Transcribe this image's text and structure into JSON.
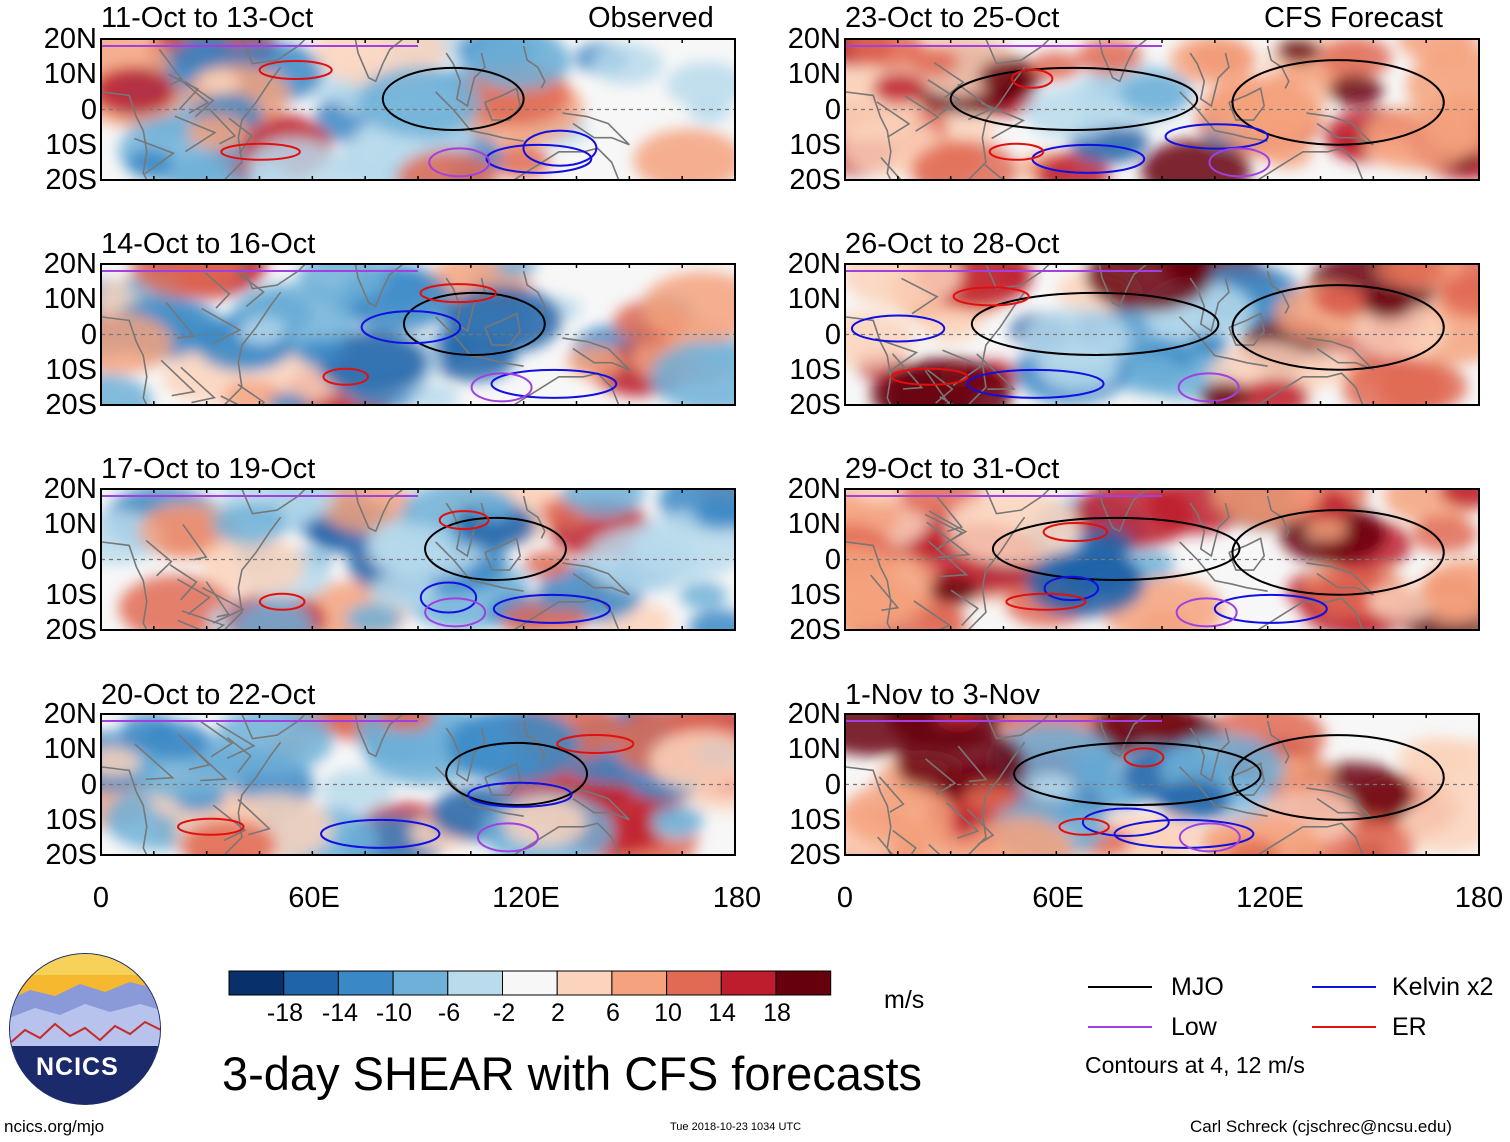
{
  "chart_data": {
    "type": "heatmap",
    "title": "3-day SHEAR with CFS forecasts",
    "variable": "SHEAR",
    "units": "m/s",
    "left_column_label": "Observed",
    "right_column_label": "CFS Forecast",
    "y_ticks": [
      "20N",
      "10N",
      "0",
      "10S",
      "20S"
    ],
    "x_ticks": [
      "0",
      "60E",
      "120E",
      "180"
    ],
    "lat_range": [
      -20,
      20
    ],
    "lon_range": [
      0,
      180
    ],
    "colorbar": {
      "labels": [
        "-18",
        "-14",
        "-10",
        "-6",
        "-2",
        "2",
        "6",
        "10",
        "14",
        "18"
      ],
      "colors": [
        "#08306b",
        "#1f63a8",
        "#3a88c5",
        "#6fb0d8",
        "#b9dbec",
        "#f7f7f7",
        "#fcd3bc",
        "#f5a27e",
        "#e06a53",
        "#bd1d2d",
        "#67000d"
      ]
    },
    "panels": [
      {
        "period": "11-Oct to 13-Oct",
        "source": "Observed",
        "column": "left",
        "row": 0
      },
      {
        "period": "14-Oct to 16-Oct",
        "source": "Observed",
        "column": "left",
        "row": 1
      },
      {
        "period": "17-Oct to 19-Oct",
        "source": "Observed",
        "column": "left",
        "row": 2
      },
      {
        "period": "20-Oct to 22-Oct",
        "source": "Observed",
        "column": "left",
        "row": 3
      },
      {
        "period": "23-Oct to 25-Oct",
        "source": "CFS Forecast",
        "column": "right",
        "row": 0
      },
      {
        "period": "26-Oct to 28-Oct",
        "source": "CFS Forecast",
        "column": "right",
        "row": 1
      },
      {
        "period": "29-Oct to 31-Oct",
        "source": "CFS Forecast",
        "column": "right",
        "row": 2
      },
      {
        "period": "1-Nov to 3-Nov",
        "source": "CFS Forecast",
        "column": "right",
        "row": 3
      }
    ],
    "contour_legend": [
      {
        "label": "MJO",
        "color": "#000000"
      },
      {
        "label": "Kelvin x2",
        "color": "#1010e0"
      },
      {
        "label": "Low",
        "color": "#a040e0"
      },
      {
        "label": "ER",
        "color": "#e01010"
      }
    ],
    "contour_note": "Contours at 4, 12 m/s"
  },
  "logo": {
    "text": "NCICS"
  },
  "footer": {
    "website": "ncics.org/mjo",
    "timestamp": "Tue 2018-10-23 1034 UTC",
    "author": "Carl Schreck (cjschrec@ncsu.edu)"
  }
}
